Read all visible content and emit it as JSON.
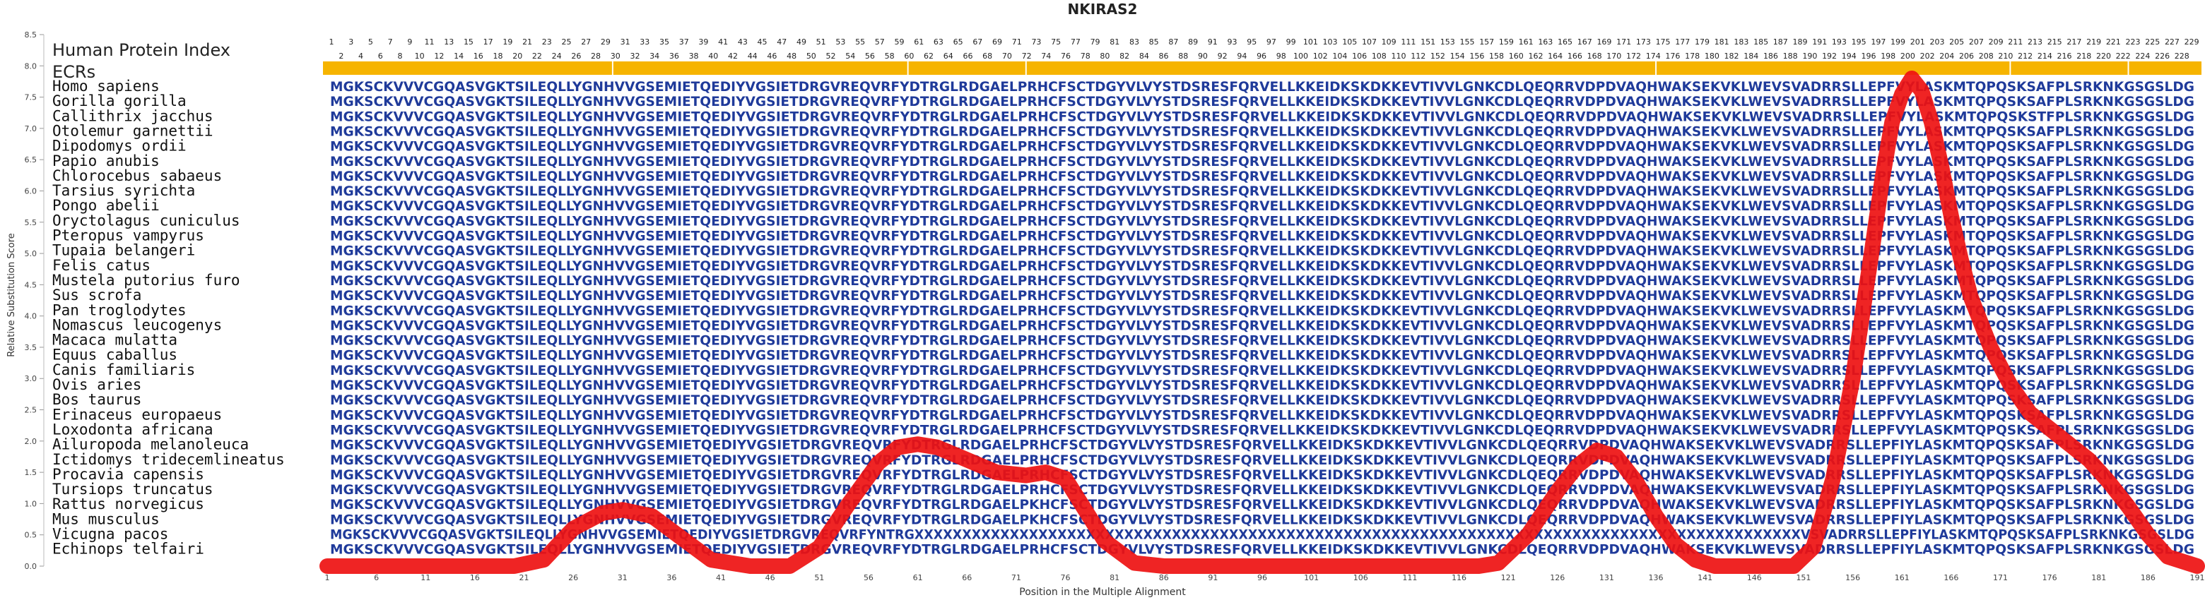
{
  "chart_data": {
    "type": "line",
    "title": "NKIRAS2",
    "xlabel": "Position in the Multiple Alignment",
    "ylabel": "Relative Substitution Score",
    "xlim": [
      1,
      191
    ],
    "ylim": [
      0,
      8.5
    ],
    "x_ticks": [
      1,
      6,
      11,
      16,
      21,
      26,
      31,
      36,
      41,
      46,
      51,
      56,
      61,
      66,
      71,
      76,
      81,
      86,
      91,
      96,
      101,
      106,
      111,
      116,
      121,
      126,
      131,
      136,
      141,
      146,
      151,
      156,
      161,
      166,
      171,
      176,
      181,
      186,
      191
    ],
    "y_ticks": [
      0.0,
      0.5,
      1.0,
      1.5,
      2.0,
      2.5,
      3.0,
      3.5,
      4.0,
      4.5,
      5.0,
      5.5,
      6.0,
      6.5,
      7.0,
      7.5,
      8.0,
      8.5
    ],
    "human_index_label": "Human Protein Index",
    "ecr_label": "ECRs",
    "human_index_top": [
      1,
      3,
      5,
      7,
      9,
      11,
      13,
      15,
      17,
      19,
      21,
      23,
      25,
      27,
      29,
      31,
      33,
      35,
      37,
      39,
      41,
      43,
      45,
      47,
      49,
      51,
      53,
      55,
      57,
      59,
      61,
      63,
      65,
      67,
      69,
      71,
      73,
      75,
      77,
      79,
      81,
      83,
      85,
      87,
      89,
      91,
      93,
      95,
      97,
      99,
      101,
      103,
      105,
      107,
      109,
      111,
      151,
      153,
      155,
      157,
      159,
      161,
      163,
      165,
      167,
      169,
      171,
      173,
      175,
      177,
      179,
      181,
      183,
      185,
      187,
      189,
      191,
      193,
      195,
      197,
      199,
      201,
      203,
      205,
      207,
      209,
      211,
      213,
      215,
      217,
      219,
      221,
      223,
      225,
      227,
      229
    ],
    "human_index_bottom": [
      2,
      4,
      6,
      8,
      10,
      12,
      14,
      16,
      18,
      20,
      22,
      24,
      26,
      28,
      30,
      32,
      34,
      36,
      38,
      40,
      42,
      44,
      46,
      48,
      50,
      52,
      54,
      56,
      58,
      60,
      62,
      64,
      66,
      68,
      70,
      72,
      74,
      76,
      78,
      80,
      82,
      84,
      86,
      88,
      90,
      92,
      94,
      96,
      98,
      100,
      102,
      104,
      106,
      108,
      110,
      112,
      152,
      154,
      156,
      158,
      160,
      162,
      164,
      166,
      168,
      170,
      172,
      174,
      176,
      178,
      180,
      182,
      184,
      186,
      188,
      190,
      192,
      194,
      196,
      198,
      200,
      202,
      204,
      206,
      208,
      210,
      212,
      214,
      216,
      218,
      220,
      222,
      224,
      226,
      228
    ],
    "ecr_regions": [
      [
        1,
        29.5
      ],
      [
        30.5,
        59.5
      ],
      [
        60.5,
        71.5
      ],
      [
        72.5,
        135.5
      ],
      [
        136.5,
        171.5
      ],
      [
        172.5,
        183.5
      ],
      [
        184.5,
        191
      ]
    ],
    "species": [
      "Homo sapiens",
      "Gorilla gorilla",
      "Callithrix jacchus",
      "Otolemur garnettii",
      "Dipodomys ordii",
      "Papio anubis",
      "Chlorocebus sabaeus",
      "Tarsius syrichta",
      "Pongo abelii",
      "Oryctolagus cuniculus",
      "Pteropus vampyrus",
      "Tupaia belangeri",
      "Felis catus",
      "Mustela putorius furo",
      "Sus scrofa",
      "Pan troglodytes",
      "Nomascus leucogenys",
      "Macaca mulatta",
      "Equus caballus",
      "Canis familiaris",
      "Ovis aries",
      "Bos taurus",
      "Erinaceus europaeus",
      "Loxodonta africana",
      "Ailuropoda melanoleuca",
      "Ictidomys tridecemlineatus",
      "Procavia capensis",
      "Tursiops truncatus",
      "Rattus norvegicus",
      "Mus musculus",
      "Vicugna pacos",
      "Echinops telfairi"
    ],
    "sequences": [
      "MGKSCKVVVCGQASVGKTSILEQLLYGNHVVGSEMIETQEDIYVGSIETDRGVREQVRFYDTRGLRDGAELPRHCFSCTDGYVLVYSTDSRESFQRVELLKKEIDKSKDKKEVTIVVLGNKCDLQEQRRVDPDVAQHWAKSEKVKLWEVSVADRRSLLEPFVYLASKMTQPQSKSAFPLSRKNKGSGSLDG",
      "MGKSCKVVVCGQASVGKTSILEQLLYGNHVVGSEMIETQEDIYVGSIETDRGVREQVRFYDTRGLRDGAELPRHCFSCTDGYVLVYSTDSRESFQRVELLKKEIDKSKDKKEVTIVVLGNKCDLQEQRRVDPDVAQHWAKSEKVKLWEVSVADRRSLLEPFVYLASKMTQPQSKSAFPLSRKNKGSGSLDG",
      "MGKSCKVVVCGQASVGKTSILEQLLYGNHVVGSEMIETQEDIYVGSIETDRGVREQVRFYDTRGLRDGAELPRHCFSCTDGYVLVYSTDSRESFQRVELLKKEIDKSKDKKEVTIVVLGNKCDLQEQRRVDPDVAQHWAKSEKVKLWEVSVADRRSLLEPFVYLASKMTQPQSKSTFPLSRKNKGSGSLDG",
      "MGKSCKVVVCGQASVGKTSILEQLLYGNHVVGSEMIETQEDIYVGSIETDRGVREQVRFYDTRGLRDGAELPRHCFSCTDGYVLVYSTDSRESFQRVELLKKEIDKSKDKKEVTIVVLGNKCDLQEQRRVDPDVAQHWAKSEKVKLWEVSVADRRSLLEPFVYLASKMTQPQSKSAFPLSRKNKGSGSLDG",
      "MGKSCKVVVCGQASVGKTSILEQLLYGNHVVGSEMIETQEDIYVGSIETDRGVREQVRFYDTRGLRDGAELPRHCFSCTDGYVLVYSTDSRESFQRVELLKKEIDKSKDKKEVTIVVLGNKCDLQEQRRVDPDVAQHWAKSEKVKLWEVSVADRRSLLEPFVYLASKMTQPQSKSAFPLSRKNKGSGSLDG",
      "MGKSCKVVVCGQASVGKTSILEQLLYGNHVVGSEMIETQEDIYVGSIETDRGVREQVRFYDTRGLRDGAELPRHCFSCTDGYVLVYSTDSRESFQRVELLKKEIDKSKDKKEVTIVVLGNKCDLQEQRRVDPDVAQHWAKSEKVKLWEVSVADRRSLLEPFVYLASKMTQPQSKSAFPLSRKNKGSGSLDG",
      "MGKSCKVVVCGQASVGKTSILEQLLYGNHVVGSEMIETQEDIYVGSIETDRGVREQVRFYDTRGLRDGAELPRHCFSCTDGYVLVYSTDSRESFQRVELLKKEIDKSKDKKEVTIVVLGNKCDLQEQRRVDPDVAQHWAKSEKVKLWEVSVADRRSLLEPFVYLASKMTQPQSKSAFPLSRKNKGSGSLDG",
      "MGKSCKVVVCGQASVGKTSILEQLLYGNHVVGSEMIETQEDIYVGSIETDRGVREQVRFYDTRGLRDGAELPRHCFSCTDGYVLVYSTDSRESFQRVELLKKEIDKSKDKKEVTIVVLGNKCDLQEQRRVDPDVAQHWAKSEKVKLWEVSVADRRSLLEPFVYLASKMTQPQSKSAFPLSRKNKGSGSLDG",
      "MGKSCKVVVCGQASVGKTSILEQLLYGNHVVGSEMIETQEDIYVGSIETDRGVREQVRFYDTRGLRDGAELPRHCFSCTDGYVLVYSTDSRESFQRVELLKKEIDKSKDKKEVTIVVLGNKCDLQEQRRVDPDVAQHWAKSEKVKLWEVSVADRRSLLEPFVYLASKMTQPQSKSAFPLSRKNKGSGSLDG",
      "MGKSCKVVVCGQASVGKTSILEQLLYGNHVVGSEMIETQEDIYVGSIETDRGVREQVRFYDTRGLRDGAELPRHCFSCTDGYVLVYSTDSRESFQRVELLKKEIDKSKDKKEVTIVVLGNKCDLQEQRRVDPDVAQHWAKSEKVKLWEVSVADRRSLLEPFVYLASKMTQPQSKSAFPLSRKNKGSGSLDG",
      "MGKSCKVVVCGQASVGKTSILEQLLYGNHVVGSEMIETQEDIYVGSIETDRGVREQVRFYDTRGLRDGAELPRHCFSCTDGYVLVYSTDSRESFQRVELLKKEIDKSKDKKEVTIVVLGNKCDLQEQRRVDPDVAQHWAKSEKVKLWEVSVADRRSLLEPFVYLASKMTQPQSKSAFPLSRKNKGSGSLDG",
      "MGKSCKVVVCGQASVGKTSILEQLLYGNHVVGSEMIETQEDIYVGSIETDRGVREQVRFYDTRGLRDGAELPRHCFSCTDGYVLVYSTDSRESFQRVELLKKEIDKSKDKKEVTIVVLGNKCDLQEQRRVDPDVAQHWAKSEKVKLWEVSVADRRSLLEPFVYLASKMTQPQSKSAFPLSRKNKGSGSLDG",
      "MGKSCKVVVCGQASVGKTSILEQLLYGNHVVGSEMIETQEDIYVGSIETDRGVREQVRFYDTRGLRDGAELPRHCFSCTDGYVLVYSTDSRESFQRVELLKKEIDKSKDKKEVTIVVLGNKCDLQEQRRVDPDVAQHWAKSEKVKLWEVSVADRRSLLEPFVYLASKMTQPQSKSAFPLSRKNKGSGSLDG",
      "MGKSCKVVVCGQASVGKTSILEQLLYGNHVVGSEMIETQEDIYVGSIETDRGVREQVRFYDTRGLRDGAELPRHCFSCTDGYVLVYSTDSRESFQRVELLKKEIDKSKDKKEVTIVVLGNKCDLQEQRRVDPDVAQHWAKSEKVKLWEVSVADRRSLLEPFVYLASKMTQPQSKSAFPLSRKNKGSGSLDG",
      "MGKSCKVVVCGQASVGKTSILEQLLYGNHVVGSEMIETQEDIYVGSIETDRGVREQVRFYDTRGLRDGAELPRHCFSCTDGYVLVYSTDSRESFQRVELLKKEIDKSKDKKEVTIVVLGNKCDLQEQRRVDPDVAQHWAKSEKVKLWEVSVADRRSLLEPFVYLASKMTQPQSKSAFPLSRKNKGSGSLDG",
      "MGKSCKVVVCGQASVGKTSILEQLLYGNHVVGSEMIETQEDIYVGSIETDRGVREQVRFYDTRGLRDGAELPRHCFSCTDGYVLVYSTDSRESFQRVELLKKEIDKSKDKKEVTIVVLGNKCDLQEQRRVDPDVAQHWAKSEKVKLWEVSVADRRSLLEPFVYLASKMTQPQSKSAFPLSRKNKGSGSLDG",
      "MGKSCKVVVCGQASVGKTSILEQLLYGNHVVGSEMIETQEDIYVGSIETDRGVREQVRFYDTRGLRDGAELPRHCFSCTDGYVLVYSTDSRESFQRVELLKKEIDKSKDKKEVTIVVLGNKCDLQEQRRVDPDVAQHWAKSEKVKLWEVSVADRRSLLEPFVYLASKMTQPQSKSAFPLSRKNKGSGSLDG",
      "MGKSCKVVVCGQASVGKTSILEQLLYGNHVVGSEMIETQEDIYVGSIETDRGVREQVRFYDTRGLRDGAELPRHCFSCTDGYVLVYSTDSRESFQRVELLKKEIDKSKDKKEVTIVVLGNKCDLQEQRRVDPDVAQHWAKSEKVKLWEVSVADRRSLLEPFVYLASKMTQPQSKSAFPLSRKNKGSGSLDG",
      "MGKSCKVVVCGQASVGKTSILEQLLYGNHVVGSEMIETQEDIYVGSIETDRGVREQVRFYDTRGLRDGAELPRHCFSCTDGYVLVYSTDSRESFQRVELLKKEIDKSKDKKEVTIVVLGNKCDLQEQRRVDPDVAQHWAKSEKVKLWEVSVADRRSLLEPFVYLASKMTQPQSKSAFPLSRKNKGSGSLDG",
      "MGKSCKVVVCGQASVGKTSILEQLLYGNHVVGSEMIETQEDIYVGSIETDRGVREQVRFYDTRGLRDGAELPRHCFSCTDGYVLVYSTDSRESFQRVELLKKEIDKSKDKKEVTIVVLGNKCDLQEQRRVDPDVAQHWAKSEKVKLWEVSVADRRSLLEPFVYLASKMTQPQSKSAFPLSRKNKGSGSLDG",
      "MGKSCKVVVCGQASVGKTSILEQLLYGNHVVGSEMIETQEDIYVGSIETDRGVREQVRFYDTRGLRDGAELPRHCFSCTDGYVLVYSTDSRESFQRVELLKKEIDKSKDKKEVTIVVLGNKCDLQEQRRVDPDVAQHWAKSEKVKLWEVSVADRRSLLEPFVYLASKMTQPQSKSAFPLSRKNKGSGSLDG",
      "MGKSCKVVVCGQASVGKTSILEQLLYGNHVVGSEMIETQEDIYVGSIETDRGVREQVRFYDTRGLRDGAELPRHCFSCTDGYVLVYSTDSRESFQRVELLKKEIDKSKDKKEVTIVVLGNKCDLQEQRRVDPDVAQHWAKSEKVKLWEVSVADRRSLLEPFVYLASKMTQPQSKSAFPLSRKNKGSGSLDG",
      "MGKSCKVVVCGQASVGKTSILEQLLYGNHVVGSEMIETQEDIYVGSIETDRGVREQVRFYDTRGLRDGAELPRHCFSCTDGYVLVYSTDSRESFQRVELLKKEIDKSKDKKEVTIVVLGNKCDLQEQRRVDPDVAQHWAKSEKVKLWEVSVADRRSLLEPFVYLASKMTQPQSKSAFPLSRKNKGSGSLDG",
      "MGKSCKVVVCGQASVGKTSILEQLLYGNHVVGSEMIETQEDIYVGSIETDRGVREQVRFYDTRGLRDGAELPRHCFSCTDGYVLVYSTDSRESFQRVELLKKEIDKSKDKKEVTIVVLGNKCDLQEQRRVDPDVAQHWAKSEKVKLWEVSVADRRSLLEPFVYLASKMTQPQSKSAFPLSRKNKGSGSLDG",
      "MGKSCKVVVCGQASVGKTSILEQLLYGNHVVGSEMIETQEDIYVGSIETDRGVREQVRFYDTRGLRDGAELPRHCFSCTDGYVLVYSTDSRESFQRVELLKKEIDKSKDKKEVTIVVLGNKCDLQEQRRVDPDVAQHWAKSEKVKLWEVSVADRRSLLEPFIYLASKMTQPQSKSAFPLSRKNKGSGSLDG",
      "MGKSCKVVVCGQASVGKTSILEQLLYGNHVVGSEMIETQEDIYVGSIETDRGVREQVRFYDTRGLRDGAELPRHCFSCTDGYVLVYSTDSRESFQRVELLKKEIDKSKDKKEVTIVVLGNKCDLQEQRRVDPDVAQHWAKSEKVKLWEVSVADRRSLLEPFIYLASKMTQPQSKSAFPLSRKNKGSGSLDG",
      "MGKSCKVVVCGQASVGKTSILEQLLYGNHVVGSEMIETQEDIYVGSIETDRGVREQVRFYDTRGLRDGAELPRHCFSCTDGYVLVYSTDSRESFQRVELLKKEIDKSKDKKEVTIVVLGNKCDLQEQRRVDPDVAQHWAKSEKVKLWEVSVADRRSLLEPFIYLASKMTQPQSKSAFPLSRKNKGSGSLDG",
      "MGKSCKVVVCGQASVGKTSILEQLLYGNHVVGSEMIETQEDIYVGSIETDRGVREQVRFYDTRGLRDGAELPRHCFSCTDGYVLVYSTDSRESFQRVELLKKEIDKSKDKKEVTIVVLGNKCDLQEQRRVDPDVAQHWAKSEKVKLWEVSVADRRSLLEPFIYLASKMTQPQSKSAFPLSRKNKGSGSLDG",
      "MGKSCKVVVCGQASVGKTSILEQLLYGNHVVGSEMIETQEDIYVGSIETDRGVREQVRFYDTRGLRDGAELPKHCFSCTDGYVLVYSTDSRESFQRVELLKKEIDKSKDKKEVTIVVLGNKCDLQEQRRVDPDVAQHWAKSEKVKLWEVSVADRRSLLEPFIYLASKMTQPQSKSAFPLSRKNKGSGSLDG",
      "MGKSCKVVVCGQASVGKTSILEQLLYGNHVVGSEMIETQEDIYVGSIETDRGVREQVRFYDTRGLRDGAELPKHCFSCTDGYVLVYSTDSRESFQRVELLKKEIDKSKDKKEVTIVVLGNKCDLQEQRRVDPDVAQHWAKSEKVKLWEVSVADRRSLLEPFIYLASKMTQPQSKSAFPLSRKNKGSGSLDG",
      "MGKSCKVVVCGQASVGKTSILEQLLYGNHVVGSEMIETQEDIYVGSIETDRGVREQVRFYNTRGXXXXXXXXXXXXXXXXXXXXXXXXXXXXXXXXXXXXXXXXXXXXXXXXXXXXXXXXXXXXXXXXXXXXXXXXXXXXXXXXXXXXXXXXXXXXXVSVADRRSLLEPFIYLASKMTQPQSKSAFPLSRKNKGSGSLDG",
      "MGKSCKVVVCGQASVGKTSILEQLLYGNHVVGSEMIETQEDIYVGSIETDRGVREQVRFYDTRGLRDGAELPRHCFSCTDGYVLVYSTDSRESFQRVELLKKEIDKSKDKKEVTIVVLGNKCDLQEQRRVDPDVAQHWAKSEKVKLWEVSVADRRSLLEPFIYLASKMTQPQSKSAFPLSRKNKGSGSLDG"
    ],
    "series": [
      {
        "x": [
          1,
          20,
          23,
          26,
          29,
          31,
          34,
          37,
          40,
          44,
          48,
          51,
          54,
          57,
          59,
          61,
          63,
          66,
          69,
          72,
          74,
          76,
          78,
          80,
          83,
          86,
          118,
          120,
          123,
          126,
          128,
          130,
          132,
          134,
          136,
          138,
          140,
          142,
          144,
          150,
          152,
          154,
          156,
          158,
          159,
          160,
          161,
          162,
          163,
          164,
          165,
          166,
          167,
          168,
          170,
          172,
          174,
          176,
          178,
          180,
          182,
          184,
          186,
          188,
          191
        ],
        "values": [
          0,
          0,
          0.1,
          0.6,
          0.85,
          0.9,
          0.8,
          0.45,
          0.1,
          0,
          0,
          0.3,
          1.0,
          1.65,
          1.9,
          1.95,
          1.9,
          1.7,
          1.5,
          1.45,
          1.5,
          1.4,
          0.9,
          0.4,
          0.05,
          0,
          0,
          0.05,
          0.5,
          1.2,
          1.6,
          1.85,
          1.75,
          1.35,
          0.8,
          0.35,
          0.1,
          0,
          0,
          0,
          0.3,
          1.4,
          3.0,
          5.1,
          6.2,
          7.1,
          7.55,
          7.8,
          7.6,
          7.1,
          6.4,
          5.6,
          4.9,
          4.3,
          3.5,
          2.9,
          2.45,
          2.2,
          1.95,
          1.7,
          1.35,
          0.95,
          0.5,
          0.15,
          0
        ]
      }
    ]
  }
}
